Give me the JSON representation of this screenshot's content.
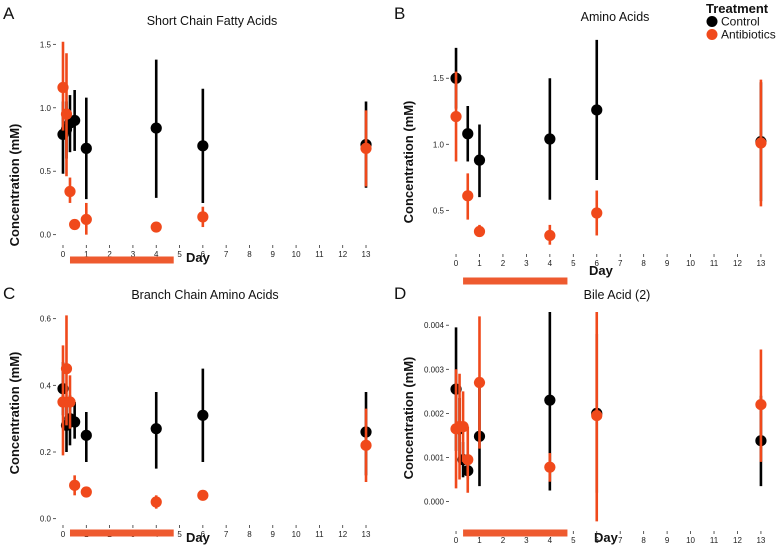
{
  "legend": {
    "title": "Treatment",
    "items": [
      {
        "label": "Control",
        "color": "#000000"
      },
      {
        "label": "Antibiotics",
        "color": "#f0491b"
      }
    ]
  },
  "treatment_bar": {
    "from_day": 0.3,
    "to_day": 4.75,
    "color": "#ee5a2f"
  },
  "chart_data": [
    {
      "panel": "A",
      "type": "scatter",
      "title": "Short Chain Fatty Acids",
      "xlabel": "Day",
      "ylabel": "Concentration (mM)",
      "xlim": [
        -0.3,
        13.6
      ],
      "ylim": [
        -0.05,
        1.55
      ],
      "xticks": [
        0,
        1,
        2,
        3,
        4,
        5,
        6,
        7,
        8,
        9,
        10,
        11,
        12,
        13
      ],
      "yticks": [
        0.0,
        0.5,
        1.0,
        1.5
      ],
      "ytick_labels": [
        "0.0",
        "0.5",
        "1.0",
        "1.5"
      ],
      "series": [
        {
          "name": "Control",
          "color": "#000000",
          "points": [
            {
              "x": 0.0,
              "y": 0.79,
              "lo": 0.48,
              "hi": 1.05
            },
            {
              "x": 0.15,
              "y": 0.83,
              "lo": 0.6,
              "hi": 1.05
            },
            {
              "x": 0.3,
              "y": 0.88,
              "lo": 0.65,
              "hi": 1.1
            },
            {
              "x": 0.5,
              "y": 0.9,
              "lo": 0.66,
              "hi": 1.14
            },
            {
              "x": 1.0,
              "y": 0.68,
              "lo": 0.28,
              "hi": 1.08
            },
            {
              "x": 4.0,
              "y": 0.84,
              "lo": 0.29,
              "hi": 1.38
            },
            {
              "x": 6.0,
              "y": 0.7,
              "lo": 0.25,
              "hi": 1.15
            },
            {
              "x": 13.0,
              "y": 0.71,
              "lo": 0.37,
              "hi": 1.05
            }
          ]
        },
        {
          "name": "Antibiotics",
          "color": "#f0491b",
          "points": [
            {
              "x": 0.0,
              "y": 1.16,
              "lo": 0.82,
              "hi": 1.52
            },
            {
              "x": 0.15,
              "y": 0.95,
              "lo": 0.46,
              "hi": 1.43
            },
            {
              "x": 0.3,
              "y": 0.34,
              "lo": 0.25,
              "hi": 0.45
            },
            {
              "x": 0.5,
              "y": 0.08,
              "lo": 0.06,
              "hi": 0.1
            },
            {
              "x": 1.0,
              "y": 0.12,
              "lo": 0.0,
              "hi": 0.25
            },
            {
              "x": 4.0,
              "y": 0.06,
              "lo": 0.04,
              "hi": 0.08
            },
            {
              "x": 6.0,
              "y": 0.14,
              "lo": 0.06,
              "hi": 0.22
            },
            {
              "x": 13.0,
              "y": 0.68,
              "lo": 0.38,
              "hi": 0.98
            }
          ]
        }
      ]
    },
    {
      "panel": "B",
      "type": "scatter",
      "title": "Amino Acids",
      "xlabel": "Day",
      "ylabel": "Concentration (mM)",
      "xlim": [
        -0.3,
        13.6
      ],
      "ylim": [
        0.2,
        1.85
      ],
      "xticks": [
        0,
        1,
        2,
        3,
        4,
        5,
        6,
        7,
        8,
        9,
        10,
        11,
        12,
        13
      ],
      "yticks": [
        0.5,
        1.0,
        1.5
      ],
      "ytick_labels": [
        "0.5",
        "1.0",
        "1.5"
      ],
      "series": [
        {
          "name": "Control",
          "color": "#000000",
          "points": [
            {
              "x": 0.0,
              "y": 1.5,
              "lo": 1.27,
              "hi": 1.73
            },
            {
              "x": 0.5,
              "y": 1.08,
              "lo": 0.87,
              "hi": 1.29
            },
            {
              "x": 1.0,
              "y": 0.88,
              "lo": 0.6,
              "hi": 1.15
            },
            {
              "x": 4.0,
              "y": 1.04,
              "lo": 0.58,
              "hi": 1.5
            },
            {
              "x": 6.0,
              "y": 1.26,
              "lo": 0.73,
              "hi": 1.79
            },
            {
              "x": 13.0,
              "y": 1.02,
              "lo": 0.57,
              "hi": 1.47
            }
          ]
        },
        {
          "name": "Antibiotics",
          "color": "#f0491b",
          "points": [
            {
              "x": 0.0,
              "y": 1.21,
              "lo": 0.87,
              "hi": 1.55
            },
            {
              "x": 0.5,
              "y": 0.61,
              "lo": 0.43,
              "hi": 0.78
            },
            {
              "x": 1.0,
              "y": 0.34,
              "lo": 0.3,
              "hi": 0.39
            },
            {
              "x": 4.0,
              "y": 0.31,
              "lo": 0.24,
              "hi": 0.39
            },
            {
              "x": 6.0,
              "y": 0.48,
              "lo": 0.31,
              "hi": 0.65
            },
            {
              "x": 13.0,
              "y": 1.01,
              "lo": 0.53,
              "hi": 1.49
            }
          ]
        }
      ]
    },
    {
      "panel": "C",
      "type": "scatter",
      "title": "Branch Chain Amino Acids",
      "xlabel": "Day",
      "ylabel": "Concentration (mM)",
      "xlim": [
        -0.3,
        13.6
      ],
      "ylim": [
        -0.01,
        0.62
      ],
      "xticks": [
        0,
        1,
        2,
        3,
        4,
        5,
        6,
        7,
        8,
        9,
        10,
        11,
        12,
        13
      ],
      "yticks": [
        0.0,
        0.2,
        0.4,
        0.6
      ],
      "ytick_labels": [
        "0.0",
        "0.2",
        "0.4",
        "0.6"
      ],
      "series": [
        {
          "name": "Control",
          "color": "#000000",
          "points": [
            {
              "x": 0.0,
              "y": 0.39,
              "lo": 0.31,
              "hi": 0.47
            },
            {
              "x": 0.15,
              "y": 0.28,
              "lo": 0.2,
              "hi": 0.36
            },
            {
              "x": 0.3,
              "y": 0.3,
              "lo": 0.22,
              "hi": 0.37
            },
            {
              "x": 0.5,
              "y": 0.29,
              "lo": 0.24,
              "hi": 0.35
            },
            {
              "x": 1.0,
              "y": 0.25,
              "lo": 0.17,
              "hi": 0.32
            },
            {
              "x": 4.0,
              "y": 0.27,
              "lo": 0.15,
              "hi": 0.38
            },
            {
              "x": 6.0,
              "y": 0.31,
              "lo": 0.17,
              "hi": 0.45
            },
            {
              "x": 13.0,
              "y": 0.26,
              "lo": 0.13,
              "hi": 0.38
            }
          ]
        },
        {
          "name": "Antibiotics",
          "color": "#f0491b",
          "points": [
            {
              "x": 0.0,
              "y": 0.35,
              "lo": 0.19,
              "hi": 0.52
            },
            {
              "x": 0.15,
              "y": 0.45,
              "lo": 0.28,
              "hi": 0.61
            },
            {
              "x": 0.3,
              "y": 0.35,
              "lo": 0.27,
              "hi": 0.43
            },
            {
              "x": 0.5,
              "y": 0.1,
              "lo": 0.07,
              "hi": 0.13
            },
            {
              "x": 1.0,
              "y": 0.08,
              "lo": 0.07,
              "hi": 0.09
            },
            {
              "x": 4.0,
              "y": 0.05,
              "lo": 0.03,
              "hi": 0.07
            },
            {
              "x": 6.0,
              "y": 0.07,
              "lo": 0.06,
              "hi": 0.08
            },
            {
              "x": 13.0,
              "y": 0.22,
              "lo": 0.11,
              "hi": 0.33
            }
          ]
        }
      ]
    },
    {
      "panel": "D",
      "type": "scatter",
      "title": "Bile Acid (2)",
      "xlabel": "Day",
      "ylabel": "Concentration (mM)",
      "xlim": [
        -0.3,
        13.6
      ],
      "ylim": [
        -0.0006,
        0.0043
      ],
      "xticks": [
        0,
        1,
        2,
        3,
        4,
        5,
        6,
        7,
        8,
        9,
        10,
        11,
        12,
        13
      ],
      "yticks": [
        0.0,
        0.001,
        0.002,
        0.003,
        0.004
      ],
      "ytick_labels": [
        "0.000",
        "0.001",
        "0.002",
        "0.003",
        "0.004"
      ],
      "series": [
        {
          "name": "Control",
          "color": "#000000",
          "points": [
            {
              "x": 0.0,
              "y": 0.00255,
              "lo": 0.00115,
              "hi": 0.00395
            },
            {
              "x": 0.15,
              "y": 0.00165,
              "lo": 0.00095,
              "hi": 0.00235
            },
            {
              "x": 0.3,
              "y": 0.00095,
              "lo": 0.00055,
              "hi": 0.00135
            },
            {
              "x": 0.5,
              "y": 0.0007,
              "lo": 0.0005,
              "hi": 0.0009
            },
            {
              "x": 1.0,
              "y": 0.00148,
              "lo": 0.00035,
              "hi": 0.0026
            },
            {
              "x": 4.0,
              "y": 0.0023,
              "lo": 0.00025,
              "hi": 0.0043
            },
            {
              "x": 6.0,
              "y": 0.002,
              "lo": 0.0002,
              "hi": 0.0038
            },
            {
              "x": 13.0,
              "y": 0.00138,
              "lo": 0.00035,
              "hi": 0.0024
            }
          ]
        },
        {
          "name": "Antibiotics",
          "color": "#f0491b",
          "points": [
            {
              "x": 0.0,
              "y": 0.00165,
              "lo": 0.0003,
              "hi": 0.003
            },
            {
              "x": 0.15,
              "y": 0.0017,
              "lo": 0.0005,
              "hi": 0.0029
            },
            {
              "x": 0.3,
              "y": 0.0017,
              "lo": 0.0009,
              "hi": 0.0025
            },
            {
              "x": 0.5,
              "y": 0.00095,
              "lo": 0.0002,
              "hi": 0.0017
            },
            {
              "x": 1.0,
              "y": 0.0027,
              "lo": 0.0012,
              "hi": 0.0042
            },
            {
              "x": 4.0,
              "y": 0.00078,
              "lo": 0.00045,
              "hi": 0.0011
            },
            {
              "x": 6.0,
              "y": 0.00195,
              "lo": -0.00045,
              "hi": 0.0043
            },
            {
              "x": 13.0,
              "y": 0.0022,
              "lo": 0.0009,
              "hi": 0.00345
            }
          ]
        }
      ]
    }
  ]
}
